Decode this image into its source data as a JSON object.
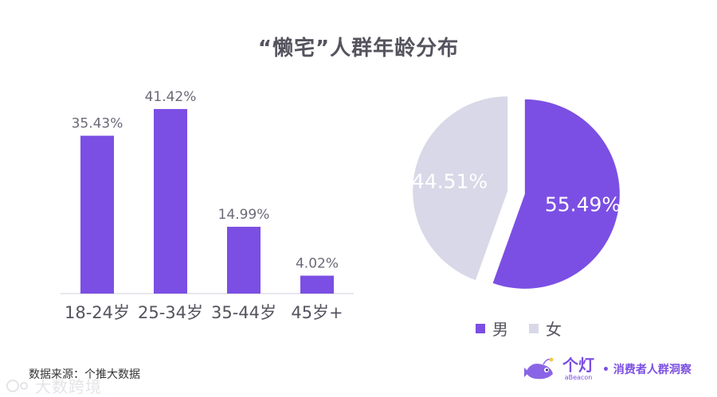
{
  "title": "“懒宅”人群年龄分布",
  "chart_data": [
    {
      "type": "bar",
      "categories": [
        "18-24岁",
        "25-34岁",
        "35-44岁",
        "45岁+"
      ],
      "values": [
        35.43,
        41.42,
        14.99,
        4.02
      ],
      "value_labels": [
        "35.43%",
        "41.42%",
        "14.99%",
        "4.02%"
      ],
      "ylim": [
        0,
        50
      ],
      "color": "#7b4fe3",
      "grid": false
    },
    {
      "type": "pie",
      "categories": [
        "男",
        "女"
      ],
      "values": [
        55.49,
        44.51
      ],
      "value_labels": [
        "55.49%",
        "44.51%"
      ],
      "colors": [
        "#7b4fe3",
        "#d8d8e8"
      ],
      "legend_position": "bottom"
    }
  ],
  "legend": {
    "male": "男",
    "female": "女"
  },
  "source": "数据来源：个推大数据",
  "watermark": "大数跨境",
  "logo": {
    "name": "个灯",
    "sub": "aBeacon",
    "slogan": "• 消费者人群洞察"
  }
}
